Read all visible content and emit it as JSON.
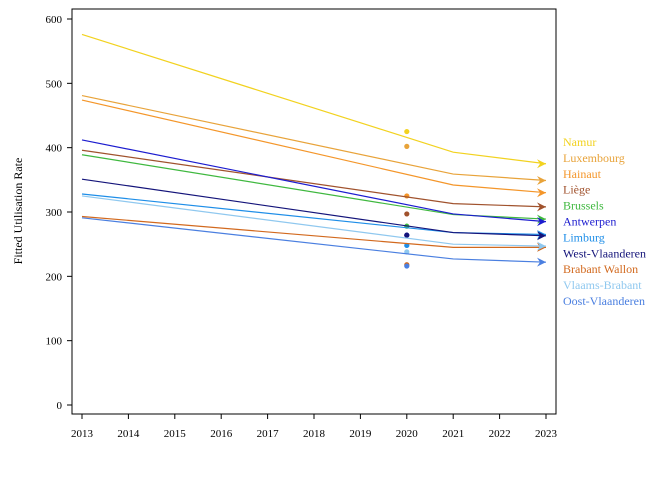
{
  "chart_data": {
    "type": "line",
    "title": "",
    "xlabel": "",
    "ylabel": "Fitted Utilisation Rate",
    "x": [
      2013,
      2014,
      2015,
      2016,
      2017,
      2018,
      2019,
      2020,
      2021,
      2022,
      2023
    ],
    "xlim": [
      2013,
      2023
    ],
    "ylim": [
      0,
      600
    ],
    "yticks": [
      0,
      100,
      200,
      300,
      400,
      500,
      600
    ],
    "grid": false,
    "legend_placement": "right",
    "series": [
      {
        "name": "Namur",
        "color": "#f2d21f",
        "line": [
          [
            2013,
            576
          ],
          [
            2021,
            393
          ],
          [
            2023,
            375
          ]
        ],
        "point": [
          2020,
          425
        ]
      },
      {
        "name": "Luxembourg",
        "color": "#e8a33a",
        "line": [
          [
            2013,
            481
          ],
          [
            2021,
            359
          ],
          [
            2023,
            349
          ]
        ],
        "point": [
          2020,
          402
        ]
      },
      {
        "name": "Hainaut",
        "color": "#f4962a",
        "line": [
          [
            2013,
            474
          ],
          [
            2021,
            342
          ],
          [
            2023,
            330
          ]
        ],
        "point": [
          2020,
          325
        ]
      },
      {
        "name": "Liège",
        "color": "#a0522d",
        "line": [
          [
            2013,
            396
          ],
          [
            2021,
            313
          ],
          [
            2023,
            308
          ]
        ],
        "point": [
          2020,
          297
        ]
      },
      {
        "name": "Brussels",
        "color": "#3fb83f",
        "line": [
          [
            2013,
            389
          ],
          [
            2021,
            296
          ],
          [
            2023,
            289
          ]
        ],
        "point": [
          2020,
          278
        ]
      },
      {
        "name": "Antwerpen",
        "color": "#1c1ccf",
        "line": [
          [
            2013,
            412
          ],
          [
            2021,
            297
          ],
          [
            2023,
            285
          ]
        ],
        "point": [
          2020,
          264
        ]
      },
      {
        "name": "Limburg",
        "color": "#1e8ee8",
        "line": [
          [
            2013,
            328
          ],
          [
            2021,
            268
          ],
          [
            2023,
            265
          ]
        ],
        "point": [
          2020,
          248
        ]
      },
      {
        "name": "West-Vlaanderen",
        "color": "#14147a",
        "line": [
          [
            2013,
            351
          ],
          [
            2021,
            268
          ],
          [
            2023,
            263
          ]
        ],
        "point": [
          2020,
          264
        ]
      },
      {
        "name": "Brabant Wallon",
        "color": "#d2691e",
        "line": [
          [
            2013,
            293
          ],
          [
            2021,
            245
          ],
          [
            2023,
            245
          ]
        ],
        "point": [
          2020,
          218
        ]
      },
      {
        "name": "Vlaams-Brabant",
        "color": "#8fc8ef",
        "line": [
          [
            2013,
            325
          ],
          [
            2021,
            250
          ],
          [
            2023,
            247
          ]
        ],
        "point": [
          2020,
          238
        ]
      },
      {
        "name": "Oost-Vlaanderen",
        "color": "#4a7fe0",
        "line": [
          [
            2013,
            291
          ],
          [
            2021,
            227
          ],
          [
            2023,
            222
          ]
        ],
        "point": [
          2020,
          216
        ]
      }
    ]
  }
}
